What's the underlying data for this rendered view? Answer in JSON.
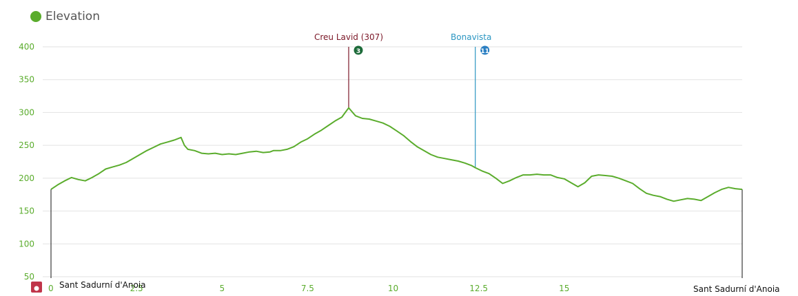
{
  "legend": {
    "label": "Elevation",
    "color": "#5aac2c"
  },
  "chart_data": {
    "type": "area",
    "series": [
      {
        "name": "Elevation",
        "color": "#5aac2c",
        "points": [
          [
            0,
            183
          ],
          [
            0.2,
            190
          ],
          [
            0.4,
            196
          ],
          [
            0.6,
            201
          ],
          [
            0.8,
            198
          ],
          [
            1.0,
            196
          ],
          [
            1.2,
            201
          ],
          [
            1.4,
            207
          ],
          [
            1.6,
            214
          ],
          [
            1.8,
            217
          ],
          [
            2.0,
            220
          ],
          [
            2.2,
            224
          ],
          [
            2.4,
            230
          ],
          [
            2.6,
            236
          ],
          [
            2.8,
            242
          ],
          [
            3.0,
            247
          ],
          [
            3.2,
            252
          ],
          [
            3.4,
            255
          ],
          [
            3.6,
            258
          ],
          [
            3.8,
            262
          ],
          [
            3.9,
            250
          ],
          [
            4.0,
            244
          ],
          [
            4.2,
            242
          ],
          [
            4.4,
            238
          ],
          [
            4.6,
            237
          ],
          [
            4.8,
            238
          ],
          [
            5.0,
            236
          ],
          [
            5.2,
            237
          ],
          [
            5.4,
            236
          ],
          [
            5.6,
            238
          ],
          [
            5.8,
            240
          ],
          [
            6.0,
            241
          ],
          [
            6.2,
            239
          ],
          [
            6.4,
            240
          ],
          [
            6.5,
            242
          ],
          [
            6.7,
            242
          ],
          [
            6.9,
            244
          ],
          [
            7.1,
            248
          ],
          [
            7.3,
            255
          ],
          [
            7.5,
            260
          ],
          [
            7.7,
            267
          ],
          [
            7.9,
            273
          ],
          [
            8.1,
            280
          ],
          [
            8.3,
            287
          ],
          [
            8.5,
            293
          ],
          [
            8.6,
            300
          ],
          [
            8.7,
            307
          ],
          [
            8.8,
            301
          ],
          [
            8.9,
            295
          ],
          [
            9.1,
            291
          ],
          [
            9.3,
            290
          ],
          [
            9.5,
            287
          ],
          [
            9.7,
            284
          ],
          [
            9.9,
            279
          ],
          [
            10.1,
            272
          ],
          [
            10.3,
            265
          ],
          [
            10.5,
            256
          ],
          [
            10.7,
            248
          ],
          [
            10.9,
            242
          ],
          [
            11.1,
            236
          ],
          [
            11.3,
            232
          ],
          [
            11.5,
            230
          ],
          [
            11.7,
            228
          ],
          [
            11.9,
            226
          ],
          [
            12.1,
            223
          ],
          [
            12.3,
            219
          ],
          [
            12.4,
            216
          ],
          [
            12.6,
            211
          ],
          [
            12.8,
            207
          ],
          [
            13.0,
            200
          ],
          [
            13.2,
            192
          ],
          [
            13.4,
            196
          ],
          [
            13.6,
            201
          ],
          [
            13.8,
            205
          ],
          [
            14.0,
            205
          ],
          [
            14.2,
            206
          ],
          [
            14.4,
            205
          ],
          [
            14.6,
            205
          ],
          [
            14.8,
            201
          ],
          [
            15.0,
            199
          ],
          [
            15.2,
            193
          ],
          [
            15.4,
            187
          ],
          [
            15.6,
            193
          ],
          [
            15.8,
            203
          ],
          [
            16.0,
            205
          ],
          [
            16.2,
            204
          ],
          [
            16.4,
            203
          ],
          [
            16.6,
            200
          ],
          [
            16.8,
            196
          ],
          [
            17.0,
            192
          ],
          [
            17.2,
            184
          ],
          [
            17.4,
            177
          ],
          [
            17.6,
            174
          ],
          [
            17.8,
            172
          ],
          [
            18.0,
            168
          ],
          [
            18.2,
            165
          ],
          [
            18.4,
            167
          ],
          [
            18.6,
            169
          ],
          [
            18.8,
            168
          ],
          [
            19.0,
            166
          ],
          [
            19.2,
            172
          ],
          [
            19.4,
            178
          ],
          [
            19.6,
            183
          ],
          [
            19.8,
            186
          ],
          [
            20.0,
            184
          ],
          [
            20.2,
            183
          ]
        ]
      }
    ],
    "x_ticks": [
      "0",
      "2.5",
      "5",
      "7.5",
      "10",
      "12.5",
      "15"
    ],
    "x_tick_values": [
      0,
      2.5,
      5,
      7.5,
      10,
      12.5,
      15
    ],
    "y_ticks": [
      "50",
      "100",
      "150",
      "200",
      "250",
      "300",
      "350",
      "400"
    ],
    "y_tick_values": [
      50,
      100,
      150,
      200,
      250,
      300,
      350,
      400
    ],
    "xlim": [
      0,
      20.2
    ],
    "ylim": [
      50,
      400
    ],
    "grid": true,
    "legend_position": "top-left",
    "markers": [
      {
        "label": "Creu Lavid (307)",
        "x": 8.7,
        "badge": "3",
        "color": "#7a1626",
        "badge_color": "#1d6b3a"
      },
      {
        "label": "Bonavista",
        "x": 12.4,
        "badge": "11",
        "color": "#2b96c2",
        "badge_color": "#2b7fc2"
      }
    ],
    "places": [
      {
        "label": "Sant Sadurní d'Anoia",
        "x": 0
      },
      {
        "label": "Sant Sadurní d'Anoia",
        "x": 20.2
      }
    ],
    "colors": {
      "grid": "#e2e2e2",
      "line": "#5aac2c",
      "start_icon": "#c0344a"
    }
  }
}
